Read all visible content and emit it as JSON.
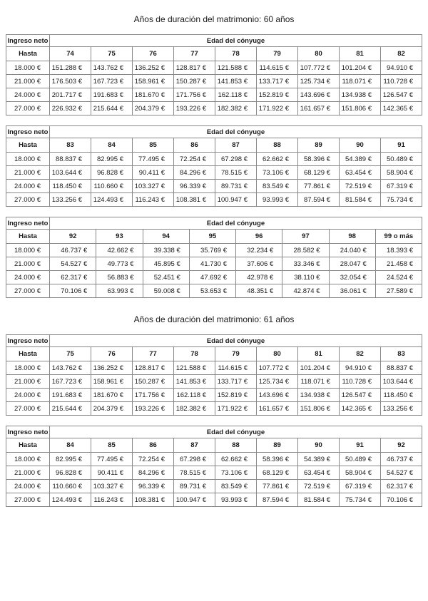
{
  "page": {
    "background": "#ffffff",
    "text_color": "#1c1c1c",
    "border_color": "#888888"
  },
  "labels": {
    "corner": "Ingreso neto",
    "span": "Edad del cónyuge",
    "row_label_header": "Hasta"
  },
  "sections": [
    {
      "title": "Años de duración del matrimonio: 60 años",
      "tables": [
        {
          "corner_label": "Ingreso neto",
          "span_label": "Edad del cónyuge",
          "row_label_header": "Hasta",
          "age_columns": [
            "74",
            "75",
            "76",
            "77",
            "78",
            "79",
            "80",
            "81",
            "82"
          ],
          "rows": [
            {
              "label": "18.000 €",
              "values": [
                "151.288 €",
                "143.762 €",
                "136.252 €",
                "128.817 €",
                "121.588 €",
                "114.615 €",
                "107.772 €",
                "101.204 €",
                "94.910 €"
              ]
            },
            {
              "label": "21.000 €",
              "values": [
                "176.503 €",
                "167.723 €",
                "158.961 €",
                "150.287 €",
                "141.853 €",
                "133.717 €",
                "125.734 €",
                "118.071 €",
                "110.728 €"
              ]
            },
            {
              "label": "24.000 €",
              "values": [
                "201.717 €",
                "191.683 €",
                "181.670 €",
                "171.756 €",
                "162.118 €",
                "152.819 €",
                "143.696 €",
                "134.938 €",
                "126.547 €"
              ]
            },
            {
              "label": "27.000 €",
              "values": [
                "226.932 €",
                "215.644 €",
                "204.379 €",
                "193.226 €",
                "182.382 €",
                "171.922 €",
                "161.657 €",
                "151.806 €",
                "142.365 €"
              ]
            }
          ]
        },
        {
          "corner_label": "Ingreso neto",
          "span_label": "Edad del cónyuge",
          "row_label_header": "Hasta",
          "age_columns": [
            "83",
            "84",
            "85",
            "86",
            "87",
            "88",
            "89",
            "90",
            "91"
          ],
          "rows": [
            {
              "label": "18.000 €",
              "values": [
                "88.837 €",
                "82.995 €",
                "77.495 €",
                "72.254 €",
                "67.298 €",
                "62.662 €",
                "58.396 €",
                "54.389 €",
                "50.489 €"
              ]
            },
            {
              "label": "21.000 €",
              "values": [
                "103.644 €",
                "96.828 €",
                "90.411 €",
                "84.296 €",
                "78.515 €",
                "73.106 €",
                "68.129 €",
                "63.454 €",
                "58.904 €"
              ]
            },
            {
              "label": "24.000 €",
              "values": [
                "118.450 €",
                "110.660 €",
                "103.327 €",
                "96.339 €",
                "89.731 €",
                "83.549 €",
                "77.861 €",
                "72.519 €",
                "67.319 €"
              ]
            },
            {
              "label": "27.000 €",
              "values": [
                "133.256 €",
                "124.493 €",
                "116.243 €",
                "108.381 €",
                "100.947 €",
                "93.993 €",
                "87.594 €",
                "81.584 €",
                "75.734 €"
              ]
            }
          ]
        },
        {
          "corner_label": "Ingreso neto",
          "span_label": "Edad del cónyuge",
          "row_label_header": "Hasta",
          "age_columns": [
            "92",
            "93",
            "94",
            "95",
            "96",
            "97",
            "98",
            "99 o más"
          ],
          "rows": [
            {
              "label": "18.000 €",
              "values": [
                "46.737 €",
                "42.662 €",
                "39.338 €",
                "35.769 €",
                "32.234 €",
                "28.582 €",
                "24.040 €",
                "18.393 €"
              ]
            },
            {
              "label": "21.000 €",
              "values": [
                "54.527 €",
                "49.773 €",
                "45.895 €",
                "41.730 €",
                "37.606 €",
                "33.346 €",
                "28.047 €",
                "21.458 €"
              ]
            },
            {
              "label": "24.000 €",
              "values": [
                "62.317 €",
                "56.883 €",
                "52.451 €",
                "47.692 €",
                "42.978 €",
                "38.110 €",
                "32.054 €",
                "24.524 €"
              ]
            },
            {
              "label": "27.000 €",
              "values": [
                "70.106 €",
                "63.993 €",
                "59.008 €",
                "53.653 €",
                "48.351 €",
                "42.874 €",
                "36.061 €",
                "27.589 €"
              ]
            }
          ]
        }
      ]
    },
    {
      "title": "Años de duración del matrimonio: 61 años",
      "tables": [
        {
          "corner_label": "Ingreso neto",
          "span_label": "Edad del cónyuge",
          "row_label_header": "Hasta",
          "age_columns": [
            "75",
            "76",
            "77",
            "78",
            "79",
            "80",
            "81",
            "82",
            "83"
          ],
          "rows": [
            {
              "label": "18.000 €",
              "values": [
                "143.762 €",
                "136.252 €",
                "128.817 €",
                "121.588 €",
                "114.615 €",
                "107.772 €",
                "101.204 €",
                "94.910 €",
                "88.837 €"
              ]
            },
            {
              "label": "21.000 €",
              "values": [
                "167.723 €",
                "158.961 €",
                "150.287 €",
                "141.853 €",
                "133.717 €",
                "125.734 €",
                "118.071 €",
                "110.728 €",
                "103.644 €"
              ]
            },
            {
              "label": "24.000 €",
              "values": [
                "191.683 €",
                "181.670 €",
                "171.756 €",
                "162.118 €",
                "152.819 €",
                "143.696 €",
                "134.938 €",
                "126.547 €",
                "118.450 €"
              ]
            },
            {
              "label": "27.000 €",
              "values": [
                "215.644 €",
                "204.379 €",
                "193.226 €",
                "182.382 €",
                "171.922 €",
                "161.657 €",
                "151.806 €",
                "142.365 €",
                "133.256 €"
              ]
            }
          ]
        },
        {
          "corner_label": "Ingreso neto",
          "span_label": "Edad del cónyuge",
          "row_label_header": "Hasta",
          "age_columns": [
            "84",
            "85",
            "86",
            "87",
            "88",
            "89",
            "90",
            "91",
            "92"
          ],
          "rows": [
            {
              "label": "18.000 €",
              "values": [
                "82.995 €",
                "77.495 €",
                "72.254 €",
                "67.298 €",
                "62.662 €",
                "58.396 €",
                "54.389 €",
                "50.489 €",
                "46.737 €"
              ]
            },
            {
              "label": "21.000 €",
              "values": [
                "96.828 €",
                "90.411 €",
                "84.296 €",
                "78.515 €",
                "73.106 €",
                "68.129 €",
                "63.454 €",
                "58.904 €",
                "54.527 €"
              ]
            },
            {
              "label": "24.000 €",
              "values": [
                "110.660 €",
                "103.327 €",
                "96.339 €",
                "89.731 €",
                "83.549 €",
                "77.861 €",
                "72.519 €",
                "67.319 €",
                "62.317 €"
              ]
            },
            {
              "label": "27.000 €",
              "values": [
                "124.493 €",
                "116.243 €",
                "108.381 €",
                "100.947 €",
                "93.993 €",
                "87.594 €",
                "81.584 €",
                "75.734 €",
                "70.106 €"
              ]
            }
          ]
        }
      ]
    }
  ]
}
